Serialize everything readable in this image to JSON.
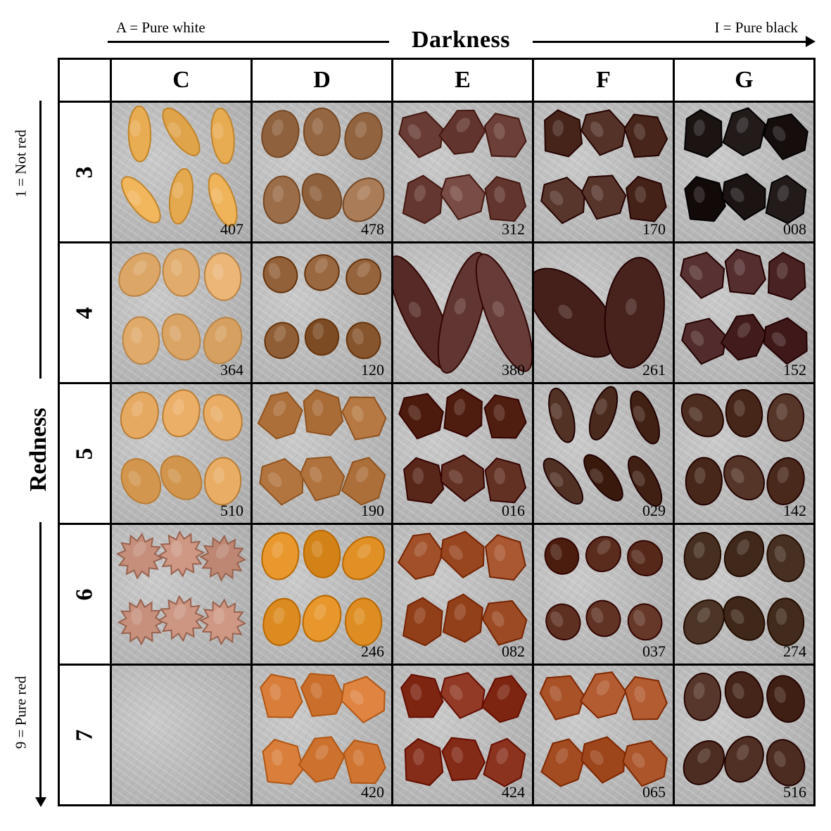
{
  "darkness_axis": {
    "left_label": "A = Pure white",
    "title": "Darkness",
    "right_label": "I = Pure black"
  },
  "redness_axis": {
    "top_label": "1 = Not red",
    "title": "Redness",
    "bottom_label": "9 = Pure red"
  },
  "columns": [
    "C",
    "D",
    "E",
    "F",
    "G"
  ],
  "rows": [
    {
      "label": "3",
      "cells": [
        {
          "code": "407",
          "color": "#e7ab52",
          "shape": "elongated"
        },
        {
          "code": "478",
          "color": "#9c6e4a",
          "shape": "oval"
        },
        {
          "code": "312",
          "color": "#6b3f37",
          "shape": "angular"
        },
        {
          "code": "170",
          "color": "#4c2a20",
          "shape": "angular"
        },
        {
          "code": "008",
          "color": "#1f1616",
          "shape": "angular"
        }
      ]
    },
    {
      "label": "4",
      "cells": [
        {
          "code": "364",
          "color": "#e2ac6d",
          "shape": "oval"
        },
        {
          "code": "120",
          "color": "#8c5a32",
          "shape": "round"
        },
        {
          "code": "380",
          "color": "#5a2e2a",
          "shape": "elongated"
        },
        {
          "code": "261",
          "color": "#4a2520",
          "shape": "oval"
        },
        {
          "code": "152",
          "color": "#4a2424",
          "shape": "angular"
        }
      ]
    },
    {
      "label": "5",
      "cells": [
        {
          "code": "510",
          "color": "#e0a45c",
          "shape": "oval"
        },
        {
          "code": "190",
          "color": "#b77a45",
          "shape": "angular"
        },
        {
          "code": "016",
          "color": "#5c2a1c",
          "shape": "angular"
        },
        {
          "code": "029",
          "color": "#47261a",
          "shape": "elongated"
        },
        {
          "code": "142",
          "color": "#4a2a1c",
          "shape": "oval"
        }
      ]
    },
    {
      "label": "6",
      "cells": [
        {
          "code": "",
          "color": "#c08a76",
          "shape": "spiky"
        },
        {
          "code": "246",
          "color": "#e08f24",
          "shape": "oval"
        },
        {
          "code": "082",
          "color": "#9c4a24",
          "shape": "angular"
        },
        {
          "code": "037",
          "color": "#5a2c1e",
          "shape": "round"
        },
        {
          "code": "274",
          "color": "#4a3324",
          "shape": "oval"
        }
      ]
    },
    {
      "label": "7",
      "cells": [
        {
          "code": "",
          "color": "",
          "shape": "empty"
        },
        {
          "code": "420",
          "color": "#d87d3a",
          "shape": "angular"
        },
        {
          "code": "424",
          "color": "#8c3420",
          "shape": "angular"
        },
        {
          "code": "065",
          "color": "#a64e24",
          "shape": "angular"
        },
        {
          "code": "516",
          "color": "#4a2a1e",
          "shape": "oval"
        }
      ]
    }
  ]
}
